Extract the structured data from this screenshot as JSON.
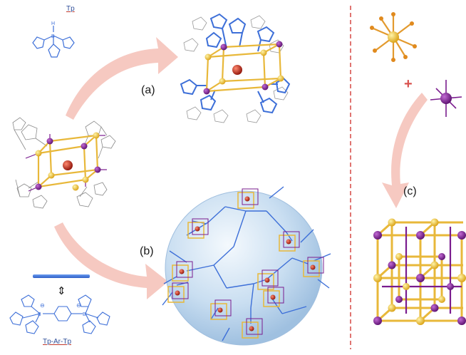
{
  "labels": {
    "panel_a": "(a)",
    "panel_b": "(b)",
    "panel_c": "(c)",
    "tp": "Tp",
    "tp_ar_tp": "Tp-Ar-Tp",
    "plus_sign": "+",
    "swap_arrow": "⇕",
    "boron": "B",
    "hydrogen": "H",
    "nitrogen": "N",
    "minus": "⊖"
  },
  "colors": {
    "ligand_blue": "#3d6fd8",
    "cage_gold": "#e8b83a",
    "metal_purple": "#7a1c8e",
    "guest_red": "#b5231b",
    "arrow_pink": "#f3b7ad",
    "divider_red": "#d9534f",
    "bond_orange": "#e39a2e",
    "sphere_blue": "#b9d3ec",
    "grey_ligand": "#8a8a8a"
  }
}
